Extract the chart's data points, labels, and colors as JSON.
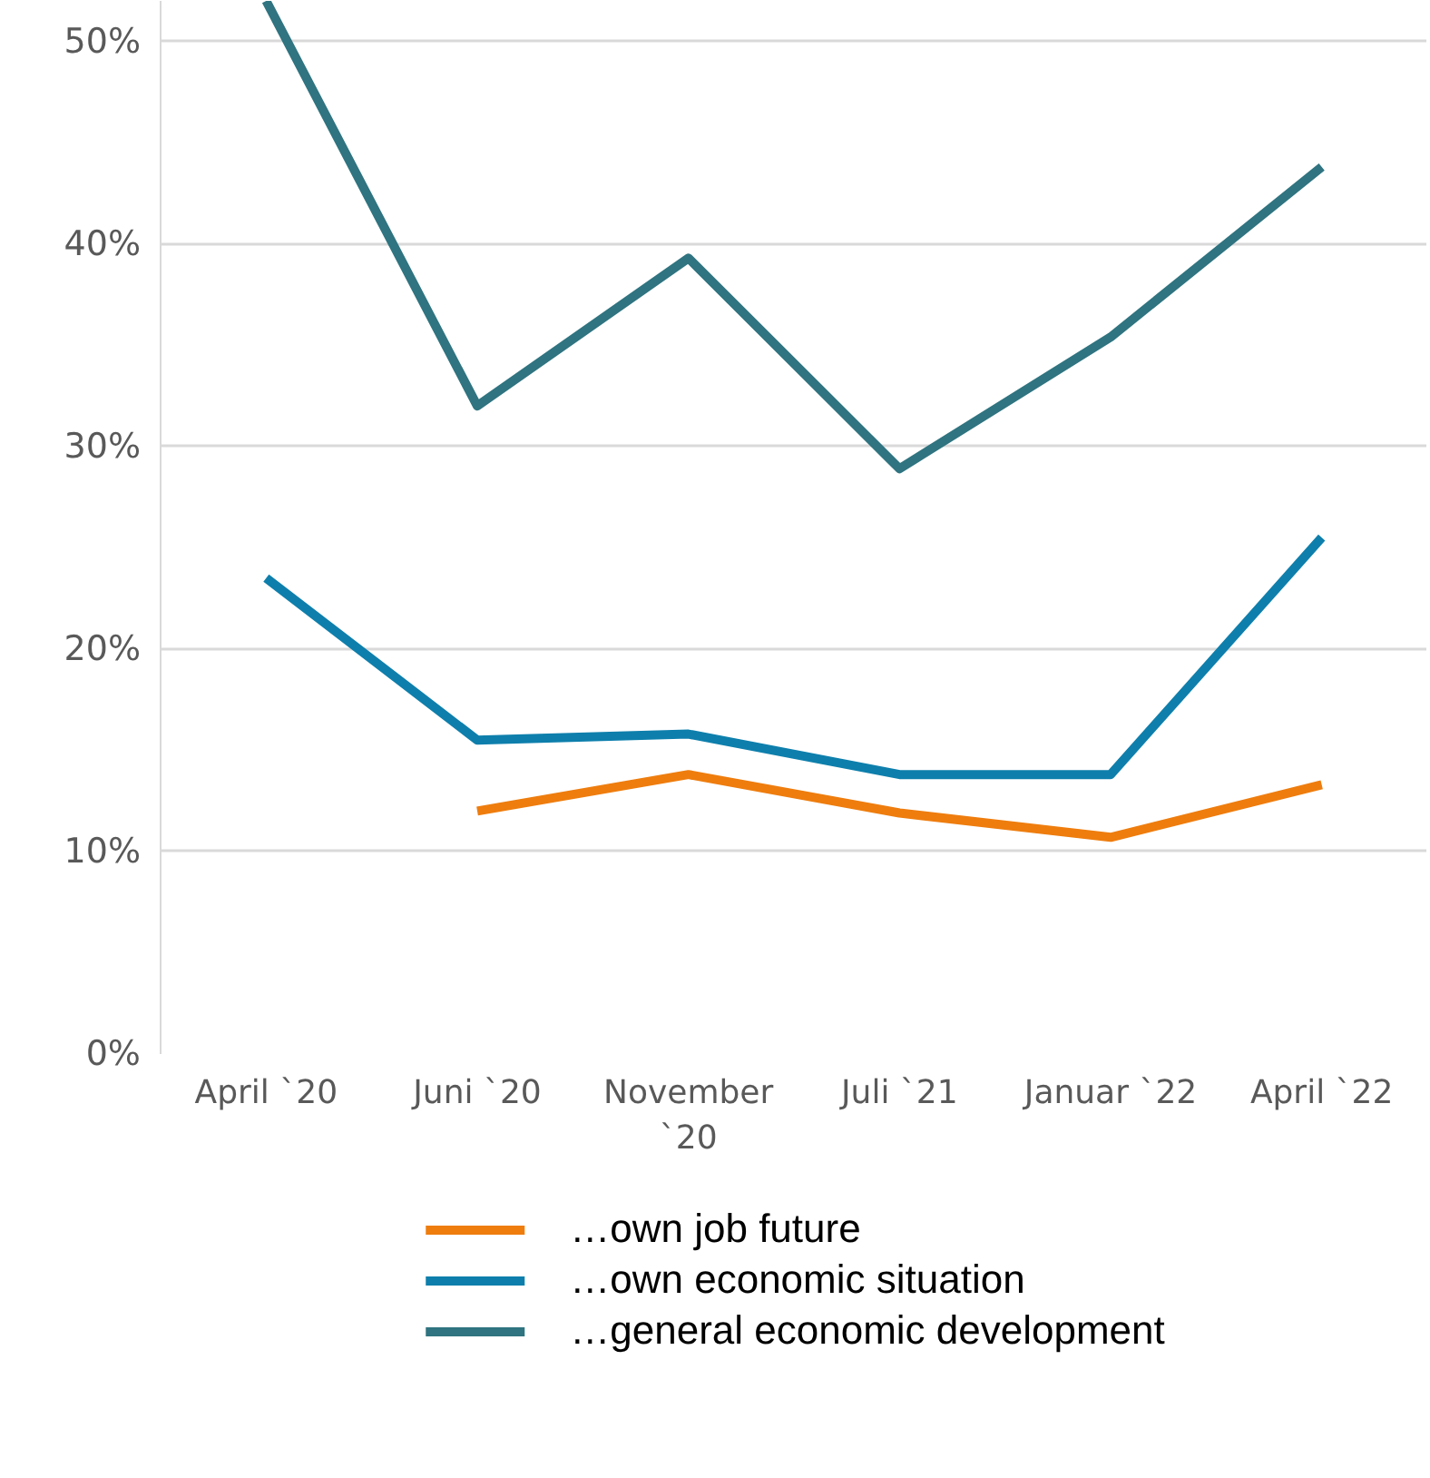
{
  "chart_data": {
    "type": "line",
    "categories": [
      "April `20",
      "Juni `20",
      "November `20",
      "Juli `21",
      "Januar `22",
      "April `22"
    ],
    "series": [
      {
        "name": "…own job future",
        "color": "#ee7d0e",
        "values": [
          null,
          12.0,
          13.8,
          11.9,
          10.7,
          13.3
        ]
      },
      {
        "name": "…own economic situation",
        "color": "#0e7fac",
        "values": [
          23.5,
          15.5,
          15.8,
          13.8,
          13.8,
          25.5
        ]
      },
      {
        "name": "…general economic development",
        "color": "#2f7480",
        "values": [
          52,
          32.0,
          39.3,
          28.9,
          35.4,
          43.8
        ]
      }
    ],
    "ylim": [
      0,
      52
    ],
    "yticks": [
      {
        "value": 0,
        "label": "0%"
      },
      {
        "value": 10,
        "label": "10%"
      },
      {
        "value": 20,
        "label": "20%"
      },
      {
        "value": 30,
        "label": "30%"
      },
      {
        "value": 40,
        "label": "40%"
      },
      {
        "value": 50,
        "label": "50%"
      }
    ],
    "grid": "y",
    "legend": "bottom",
    "marker": "none",
    "line_style": "solid"
  }
}
